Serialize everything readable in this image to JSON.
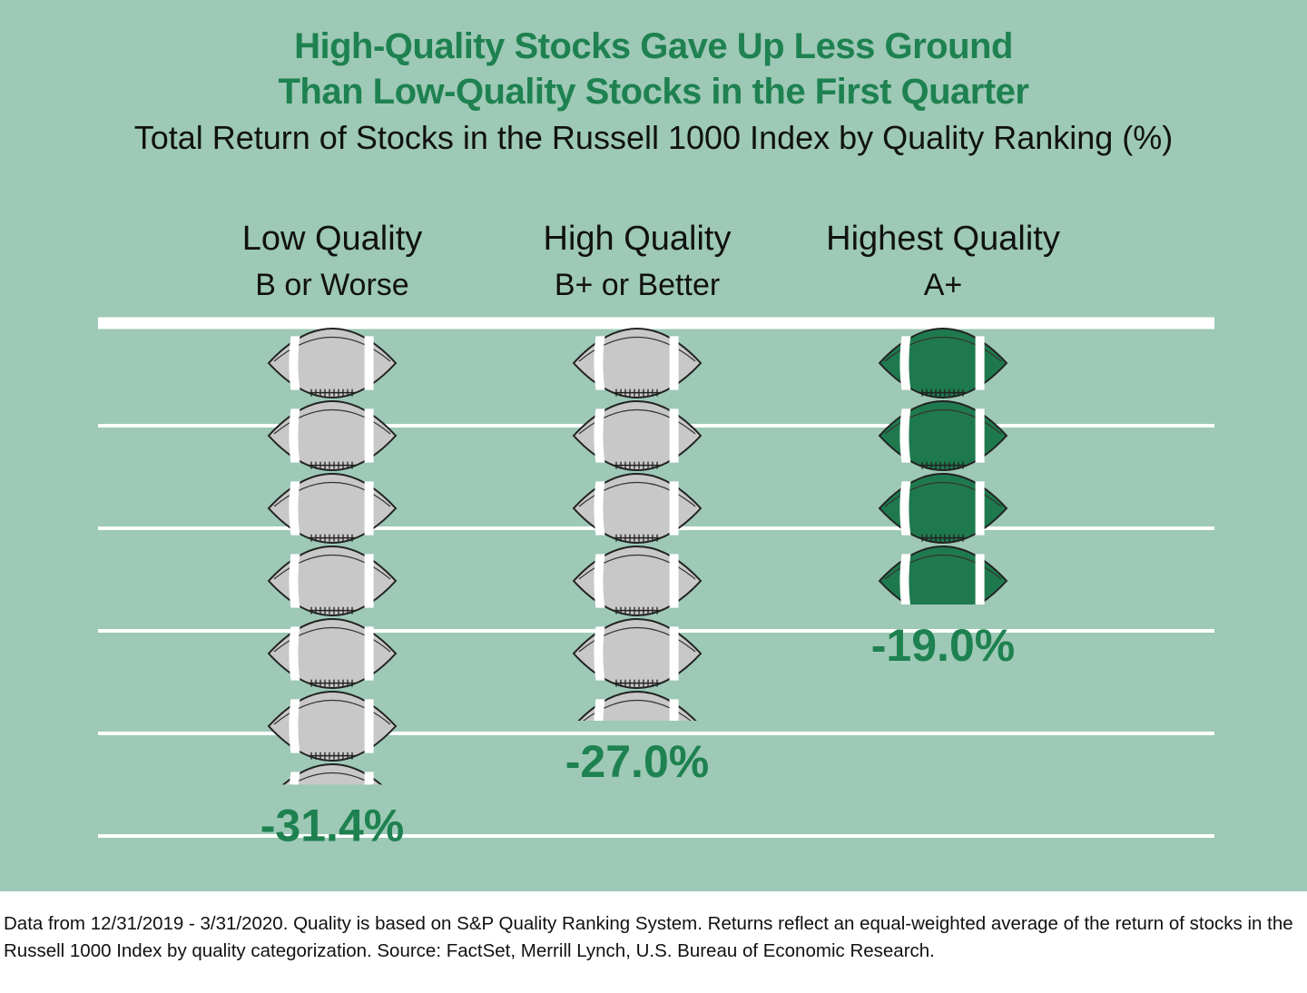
{
  "title_line_1": "High-Quality Stocks Gave Up Less Ground",
  "title_line_2": "Than Low-Quality Stocks in the First Quarter",
  "subtitle": "Total Return of Stocks in the Russell 1000 Index by Quality Ranking (%)",
  "footnote": "Data from 12/31/2019 - 3/31/2020. Quality is based on S&P Quality Ranking System. Returns reflect an equal-weighted average of the return of stocks in the Russell 1000 Index by quality categorization. Source: FactSet, Merrill Lynch, U.S. Bureau of Economic Research.",
  "colors": {
    "background": "#9dc9b6",
    "title": "#1e8150",
    "value_label": "#1e8150",
    "yard_line": "#ffffff",
    "ball_gray": "#c8c8c8",
    "ball_green": "#1e7a4e"
  },
  "chart_data": {
    "type": "bar",
    "title": "High-Quality Stocks Gave Up Less Ground Than Low-Quality Stocks in the First Quarter",
    "subtitle": "Total Return of Stocks in the Russell 1000 Index by Quality Ranking (%)",
    "categories": [
      {
        "name": "Low Quality",
        "sub": "B or Worse"
      },
      {
        "name": "High Quality",
        "sub": "B+ or Better"
      },
      {
        "name": "Highest Quality",
        "sub": "A+"
      }
    ],
    "values": [
      -31.4,
      -27.0,
      -19.0
    ],
    "value_labels": [
      "-31.4%",
      "-27.0%",
      "-19.0%"
    ],
    "icon": "football-icon",
    "highlight_series": "Highest Quality",
    "grid": true
  }
}
